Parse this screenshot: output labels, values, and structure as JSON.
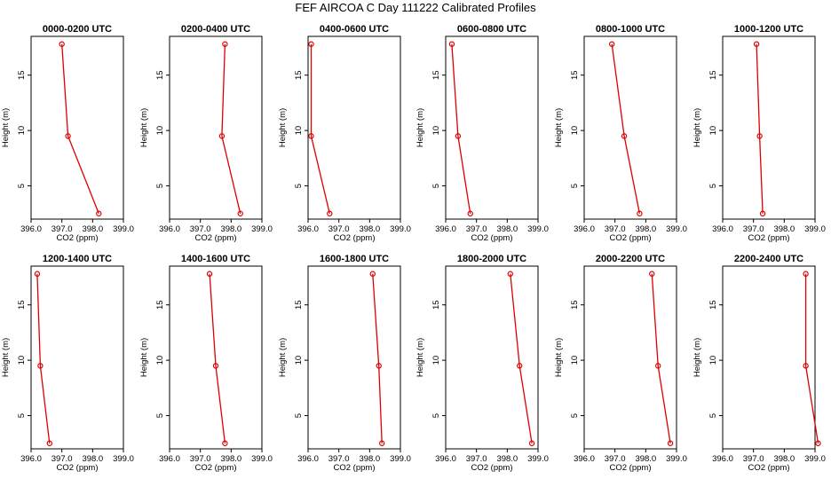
{
  "figure": {
    "title": "FEF AIRCOA C  Day 111222  Calibrated Profiles"
  },
  "colors": {
    "series": "#dd0000",
    "axes": "#000000"
  },
  "chart_data": [
    {
      "type": "line",
      "title": "0000-0200 UTC",
      "xlabel": "CO2 (ppm)",
      "ylabel": "Height (m)",
      "xlim": [
        396.0,
        399.0
      ],
      "ylim": [
        2,
        18.5
      ],
      "xticks": [
        "396.0",
        "397.0",
        "398.0",
        "399.0"
      ],
      "yticks": [
        "5",
        "10",
        "15"
      ],
      "points": [
        {
          "x": 398.2,
          "y": 2.5
        },
        {
          "x": 397.2,
          "y": 9.5
        },
        {
          "x": 397.0,
          "y": 17.8
        }
      ]
    },
    {
      "type": "line",
      "title": "0200-0400 UTC",
      "xlabel": "CO2 (ppm)",
      "ylabel": "Height (m)",
      "xlim": [
        396.0,
        399.0
      ],
      "ylim": [
        2,
        18.5
      ],
      "xticks": [
        "396.0",
        "397.0",
        "398.0",
        "399.0"
      ],
      "yticks": [
        "5",
        "10",
        "15"
      ],
      "points": [
        {
          "x": 398.3,
          "y": 2.5
        },
        {
          "x": 397.7,
          "y": 9.5
        },
        {
          "x": 397.8,
          "y": 17.8
        }
      ]
    },
    {
      "type": "line",
      "title": "0400-0600 UTC",
      "xlabel": "CO2 (ppm)",
      "ylabel": "Height (m)",
      "xlim": [
        396.0,
        399.0
      ],
      "ylim": [
        2,
        18.5
      ],
      "xticks": [
        "396.0",
        "397.0",
        "398.0",
        "399.0"
      ],
      "yticks": [
        "5",
        "10",
        "15"
      ],
      "points": [
        {
          "x": 396.7,
          "y": 2.5
        },
        {
          "x": 396.1,
          "y": 9.5
        },
        {
          "x": 396.1,
          "y": 17.8
        }
      ]
    },
    {
      "type": "line",
      "title": "0600-0800 UTC",
      "xlabel": "CO2 (ppm)",
      "ylabel": "Height (m)",
      "xlim": [
        396.0,
        399.0
      ],
      "ylim": [
        2,
        18.5
      ],
      "xticks": [
        "396.0",
        "397.0",
        "398.0",
        "399.0"
      ],
      "yticks": [
        "5",
        "10",
        "15"
      ],
      "points": [
        {
          "x": 396.8,
          "y": 2.5
        },
        {
          "x": 396.4,
          "y": 9.5
        },
        {
          "x": 396.2,
          "y": 17.8
        }
      ]
    },
    {
      "type": "line",
      "title": "0800-1000 UTC",
      "xlabel": "CO2 (ppm)",
      "ylabel": "Height (m)",
      "xlim": [
        396.0,
        399.0
      ],
      "ylim": [
        2,
        18.5
      ],
      "xticks": [
        "396.0",
        "397.0",
        "398.0",
        "399.0"
      ],
      "yticks": [
        "5",
        "10",
        "15"
      ],
      "points": [
        {
          "x": 397.8,
          "y": 2.5
        },
        {
          "x": 397.3,
          "y": 9.5
        },
        {
          "x": 396.9,
          "y": 17.8
        }
      ]
    },
    {
      "type": "line",
      "title": "1000-1200 UTC",
      "xlabel": "CO2 (ppm)",
      "ylabel": "Height (m)",
      "xlim": [
        396.0,
        399.0
      ],
      "ylim": [
        2,
        18.5
      ],
      "xticks": [
        "396.0",
        "397.0",
        "398.0",
        "399.0"
      ],
      "yticks": [
        "5",
        "10",
        "15"
      ],
      "points": [
        {
          "x": 397.3,
          "y": 2.5
        },
        {
          "x": 397.2,
          "y": 9.5
        },
        {
          "x": 397.1,
          "y": 17.8
        }
      ]
    },
    {
      "type": "line",
      "title": "1200-1400 UTC",
      "xlabel": "CO2 (ppm)",
      "ylabel": "Height (m)",
      "xlim": [
        396.0,
        399.0
      ],
      "ylim": [
        2,
        18.5
      ],
      "xticks": [
        "396.0",
        "397.0",
        "398.0",
        "399.0"
      ],
      "yticks": [
        "5",
        "10",
        "15"
      ],
      "points": [
        {
          "x": 396.6,
          "y": 2.5
        },
        {
          "x": 396.3,
          "y": 9.5
        },
        {
          "x": 396.2,
          "y": 17.8
        }
      ]
    },
    {
      "type": "line",
      "title": "1400-1600 UTC",
      "xlabel": "CO2 (ppm)",
      "ylabel": "Height (m)",
      "xlim": [
        396.0,
        399.0
      ],
      "ylim": [
        2,
        18.5
      ],
      "xticks": [
        "396.0",
        "397.0",
        "398.0",
        "399.0"
      ],
      "yticks": [
        "5",
        "10",
        "15"
      ],
      "points": [
        {
          "x": 397.8,
          "y": 2.5
        },
        {
          "x": 397.5,
          "y": 9.5
        },
        {
          "x": 397.3,
          "y": 17.8
        }
      ]
    },
    {
      "type": "line",
      "title": "1600-1800 UTC",
      "xlabel": "CO2 (ppm)",
      "ylabel": "Height (m)",
      "xlim": [
        396.0,
        399.0
      ],
      "ylim": [
        2,
        18.5
      ],
      "xticks": [
        "396.0",
        "397.0",
        "398.0",
        "399.0"
      ],
      "yticks": [
        "5",
        "10",
        "15"
      ],
      "points": [
        {
          "x": 398.4,
          "y": 2.5
        },
        {
          "x": 398.3,
          "y": 9.5
        },
        {
          "x": 398.1,
          "y": 17.8
        }
      ]
    },
    {
      "type": "line",
      "title": "1800-2000 UTC",
      "xlabel": "CO2 (ppm)",
      "ylabel": "Height (m)",
      "xlim": [
        396.0,
        399.0
      ],
      "ylim": [
        2,
        18.5
      ],
      "xticks": [
        "396.0",
        "397.0",
        "398.0",
        "399.0"
      ],
      "yticks": [
        "5",
        "10",
        "15"
      ],
      "points": [
        {
          "x": 398.8,
          "y": 2.5
        },
        {
          "x": 398.4,
          "y": 9.5
        },
        {
          "x": 398.1,
          "y": 17.8
        }
      ]
    },
    {
      "type": "line",
      "title": "2000-2200 UTC",
      "xlabel": "CO2 (ppm)",
      "ylabel": "Height (m)",
      "xlim": [
        396.0,
        399.0
      ],
      "ylim": [
        2,
        18.5
      ],
      "xticks": [
        "396.0",
        "397.0",
        "398.0",
        "399.0"
      ],
      "yticks": [
        "5",
        "10",
        "15"
      ],
      "points": [
        {
          "x": 398.8,
          "y": 2.5
        },
        {
          "x": 398.4,
          "y": 9.5
        },
        {
          "x": 398.2,
          "y": 17.8
        }
      ]
    },
    {
      "type": "line",
      "title": "2200-2400 UTC",
      "xlabel": "CO2 (ppm)",
      "ylabel": "Height (m)",
      "xlim": [
        396.0,
        399.0
      ],
      "ylim": [
        2,
        18.5
      ],
      "xticks": [
        "396.0",
        "397.0",
        "398.0",
        "399.0"
      ],
      "yticks": [
        "5",
        "10",
        "15"
      ],
      "points": [
        {
          "x": 399.1,
          "y": 2.5
        },
        {
          "x": 398.7,
          "y": 9.5
        },
        {
          "x": 398.7,
          "y": 17.8
        }
      ]
    }
  ]
}
